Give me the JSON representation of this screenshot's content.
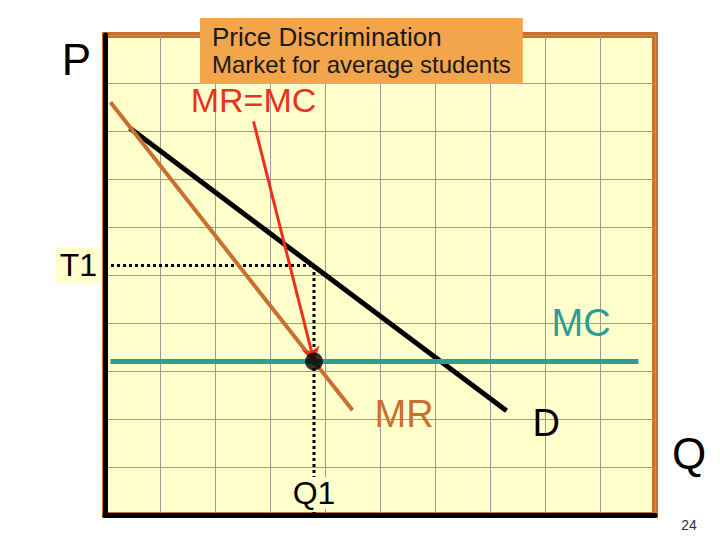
{
  "chart_data": {
    "type": "line",
    "title": "Price Discrimination",
    "subtitle": "Market for average students",
    "xlabel": "Q",
    "ylabel": "P",
    "xlim": [
      0,
      10
    ],
    "ylim": [
      0,
      10
    ],
    "xticks": [
      0,
      1,
      2,
      3,
      4,
      5,
      6,
      7,
      8,
      9,
      10
    ],
    "yticks": [
      0,
      1,
      2,
      3,
      4,
      5,
      6,
      7,
      8,
      9,
      10
    ],
    "grid": true,
    "tick_labels": false,
    "series": [
      {
        "name": "D",
        "color": "#000000",
        "x": [
          0.45,
          7.3
        ],
        "values": [
          8.06,
          2.17
        ]
      },
      {
        "name": "MR",
        "color": "#c8702e",
        "x": [
          0.1,
          4.5
        ],
        "values": [
          8.6,
          2.18
        ]
      },
      {
        "name": "MC",
        "color": "#2e9c96",
        "x": [
          0.1,
          9.7
        ],
        "values": [
          3.2,
          3.2
        ]
      }
    ],
    "price": {
      "label": "T1",
      "value": 5.2
    },
    "quantity": {
      "label": "Q1",
      "value": 3.8
    },
    "equilibrium": {
      "x": 3.8,
      "y": 3.2
    },
    "annotations": [
      {
        "text": "MR=MC",
        "x": 2.7,
        "y": 8.2,
        "arrow_to": [
          3.8,
          3.2
        ]
      }
    ],
    "page_number": 24
  }
}
